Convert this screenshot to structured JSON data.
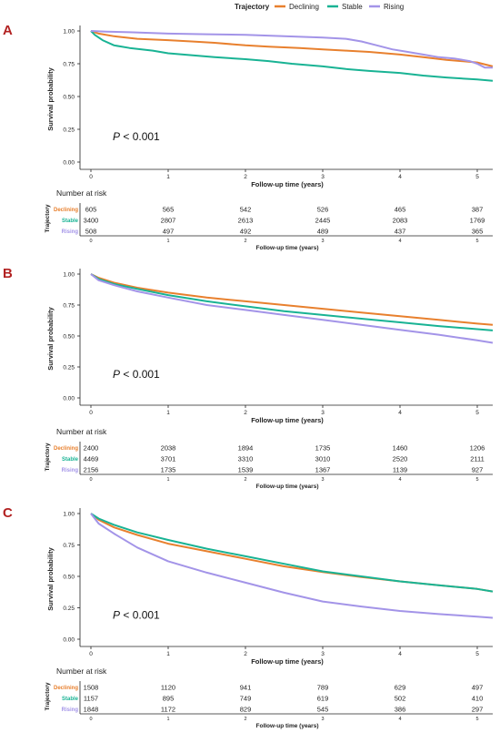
{
  "legend": {
    "title": "Trajectory",
    "items": [
      {
        "label": "Declining",
        "color": "#E8802E"
      },
      {
        "label": "Stable",
        "color": "#19B394"
      },
      {
        "label": "Rising",
        "color": "#A394E8"
      }
    ]
  },
  "shared": {
    "ylabel": "Survival probability",
    "xlabel": "Follow-up time (years)",
    "risk_title": "Number at risk",
    "risk_ylabel": "Trajectory",
    "y_ticks": [
      "0.00",
      "0.25",
      "0.50",
      "0.75",
      "1.00"
    ],
    "x_ticks": [
      "0",
      "1",
      "2",
      "3",
      "4",
      "5"
    ],
    "p_prefix": "P",
    "p_suffix": " < 0.001"
  },
  "chart_data": [
    {
      "type": "line",
      "panel_label": "A",
      "ylim": [
        0,
        1
      ],
      "xlim": [
        0,
        5.2
      ],
      "series": [
        {
          "name": "Declining",
          "color": "#E8802E",
          "x": [
            0,
            0.1,
            0.3,
            0.6,
            1.0,
            1.3,
            1.6,
            2.0,
            2.3,
            2.7,
            3.0,
            3.3,
            3.6,
            4.0,
            4.3,
            4.6,
            5.0,
            5.2
          ],
          "y": [
            1,
            0.98,
            0.96,
            0.94,
            0.93,
            0.92,
            0.91,
            0.89,
            0.88,
            0.87,
            0.86,
            0.85,
            0.84,
            0.82,
            0.8,
            0.78,
            0.76,
            0.73
          ]
        },
        {
          "name": "Stable",
          "color": "#19B394",
          "x": [
            0,
            0.05,
            0.15,
            0.3,
            0.5,
            0.8,
            1.0,
            1.3,
            1.6,
            2.0,
            2.3,
            2.6,
            3.0,
            3.3,
            3.6,
            4.0,
            4.3,
            4.6,
            5.0,
            5.2
          ],
          "y": [
            1,
            0.97,
            0.93,
            0.89,
            0.87,
            0.85,
            0.83,
            0.815,
            0.8,
            0.785,
            0.77,
            0.75,
            0.73,
            0.71,
            0.695,
            0.68,
            0.66,
            0.645,
            0.63,
            0.62
          ]
        },
        {
          "name": "Rising",
          "color": "#A394E8",
          "x": [
            0,
            0.2,
            0.5,
            1.0,
            1.5,
            2.0,
            2.5,
            3.0,
            3.3,
            3.5,
            3.7,
            3.9,
            4.1,
            4.3,
            4.5,
            4.7,
            4.9,
            5.0,
            5.1,
            5.2
          ],
          "y": [
            1,
            0.995,
            0.99,
            0.98,
            0.975,
            0.97,
            0.96,
            0.95,
            0.94,
            0.92,
            0.89,
            0.86,
            0.84,
            0.82,
            0.8,
            0.79,
            0.77,
            0.75,
            0.72,
            0.72
          ]
        }
      ],
      "risk_table": [
        {
          "label": "Declining",
          "color": "#E8802E",
          "values": [
            "605",
            "565",
            "542",
            "526",
            "465",
            "387"
          ]
        },
        {
          "label": "Stable",
          "color": "#19B394",
          "values": [
            "3400",
            "2807",
            "2613",
            "2445",
            "2083",
            "1769"
          ]
        },
        {
          "label": "Rising",
          "color": "#A394E8",
          "values": [
            "508",
            "497",
            "492",
            "489",
            "437",
            "365"
          ]
        }
      ]
    },
    {
      "type": "line",
      "panel_label": "B",
      "ylim": [
        0,
        1
      ],
      "xlim": [
        0,
        5.2
      ],
      "series": [
        {
          "name": "Declining",
          "color": "#E8802E",
          "x": [
            0,
            0.1,
            0.3,
            0.6,
            1.0,
            1.5,
            2.0,
            2.5,
            3.0,
            3.5,
            4.0,
            4.5,
            5.0,
            5.2
          ],
          "y": [
            1,
            0.97,
            0.93,
            0.89,
            0.85,
            0.81,
            0.78,
            0.75,
            0.72,
            0.69,
            0.66,
            0.63,
            0.6,
            0.59
          ]
        },
        {
          "name": "Stable",
          "color": "#19B394",
          "x": [
            0,
            0.1,
            0.3,
            0.6,
            1.0,
            1.5,
            2.0,
            2.5,
            3.0,
            3.5,
            4.0,
            4.5,
            5.0,
            5.2
          ],
          "y": [
            1,
            0.96,
            0.92,
            0.88,
            0.83,
            0.78,
            0.74,
            0.7,
            0.67,
            0.64,
            0.61,
            0.58,
            0.555,
            0.545
          ]
        },
        {
          "name": "Rising",
          "color": "#A394E8",
          "x": [
            0,
            0.1,
            0.3,
            0.6,
            1.0,
            1.5,
            2.0,
            2.5,
            3.0,
            3.5,
            4.0,
            4.5,
            5.0,
            5.2
          ],
          "y": [
            1,
            0.95,
            0.91,
            0.86,
            0.81,
            0.75,
            0.71,
            0.67,
            0.63,
            0.59,
            0.55,
            0.51,
            0.465,
            0.445
          ]
        }
      ],
      "risk_table": [
        {
          "label": "Declining",
          "color": "#E8802E",
          "values": [
            "2400",
            "2038",
            "1894",
            "1735",
            "1460",
            "1206"
          ]
        },
        {
          "label": "Stable",
          "color": "#19B394",
          "values": [
            "4469",
            "3701",
            "3310",
            "3010",
            "2520",
            "2111"
          ]
        },
        {
          "label": "Rising",
          "color": "#A394E8",
          "values": [
            "2156",
            "1735",
            "1539",
            "1367",
            "1139",
            "927"
          ]
        }
      ]
    },
    {
      "type": "line",
      "panel_label": "C",
      "ylim": [
        0,
        1
      ],
      "xlim": [
        0,
        5.2
      ],
      "series": [
        {
          "name": "Declining",
          "color": "#E8802E",
          "x": [
            0,
            0.1,
            0.3,
            0.6,
            1.0,
            1.5,
            2.0,
            2.5,
            3.0,
            3.5,
            4.0,
            4.5,
            5.0,
            5.2
          ],
          "y": [
            1,
            0.95,
            0.89,
            0.83,
            0.76,
            0.7,
            0.64,
            0.58,
            0.535,
            0.495,
            0.46,
            0.43,
            0.4,
            0.38
          ]
        },
        {
          "name": "Stable",
          "color": "#19B394",
          "x": [
            0,
            0.1,
            0.3,
            0.6,
            1.0,
            1.5,
            2.0,
            2.5,
            3.0,
            3.5,
            4.0,
            4.5,
            5.0,
            5.2
          ],
          "y": [
            1,
            0.96,
            0.91,
            0.85,
            0.79,
            0.72,
            0.66,
            0.6,
            0.54,
            0.5,
            0.46,
            0.43,
            0.4,
            0.38
          ]
        },
        {
          "name": "Rising",
          "color": "#A394E8",
          "x": [
            0,
            0.1,
            0.3,
            0.6,
            1.0,
            1.5,
            2.0,
            2.5,
            3.0,
            3.5,
            4.0,
            4.5,
            5.0,
            5.2
          ],
          "y": [
            1,
            0.92,
            0.84,
            0.73,
            0.62,
            0.53,
            0.45,
            0.37,
            0.3,
            0.26,
            0.225,
            0.2,
            0.18,
            0.17
          ]
        }
      ],
      "risk_table": [
        {
          "label": "Declining",
          "color": "#E8802E",
          "values": [
            "1508",
            "1120",
            "941",
            "789",
            "629",
            "497"
          ]
        },
        {
          "label": "Stable",
          "color": "#19B394",
          "values": [
            "1157",
            "895",
            "749",
            "619",
            "502",
            "410"
          ]
        },
        {
          "label": "Rising",
          "color": "#A394E8",
          "values": [
            "1848",
            "1172",
            "829",
            "545",
            "386",
            "297"
          ]
        }
      ]
    }
  ]
}
